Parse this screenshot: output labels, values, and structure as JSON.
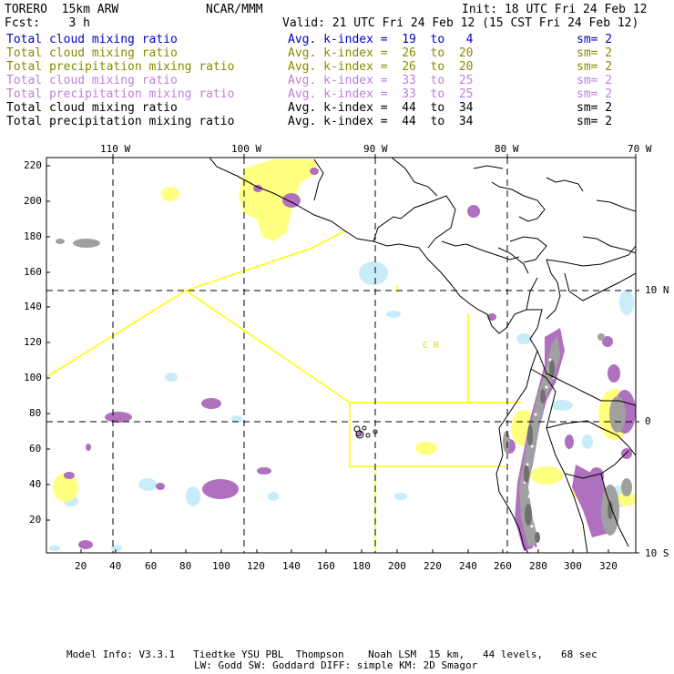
{
  "header": {
    "model": "TORERO  15km ARW",
    "org": "NCAR/MMM",
    "init": "Init: 18 UTC Fri 24 Feb 12",
    "fcst": "Fcst:    3 h",
    "valid": "Valid: 21 UTC Fri 24 Feb 12 (15 CST Fri 24 Feb 12)"
  },
  "legend": [
    {
      "label": "Total cloud mixing ratio",
      "index": "Avg. k-index =  19  to   4",
      "sm": "sm= 2",
      "color": "#0000cc"
    },
    {
      "label": "Total cloud mixing ratio",
      "index": "Avg. k-index =  26  to  20",
      "sm": "sm= 2",
      "color": "#8a8a00"
    },
    {
      "label": "Total precipitation mixing ratio",
      "index": "Avg. k-index =  26  to  20",
      "sm": "sm= 2",
      "color": "#8a8a00"
    },
    {
      "label": "Total cloud mixing ratio",
      "index": "Avg. k-index =  33  to  25",
      "sm": "sm= 2",
      "color": "#c080d8"
    },
    {
      "label": "Total precipitation mixing ratio",
      "index": "Avg. k-index =  33  to  25",
      "sm": "sm= 2",
      "color": "#c080d8"
    },
    {
      "label": "Total cloud mixing ratio",
      "index": "Avg. k-index =  44  to  34",
      "sm": "sm= 2",
      "color": "#000000"
    },
    {
      "label": "Total precipitation mixing ratio",
      "index": "Avg. k-index =  44  to  34",
      "sm": "sm= 2",
      "color": "#000000"
    }
  ],
  "map": {
    "lon_labels": [
      "110 W",
      "100 W",
      "90 W",
      "80 W",
      "70 W"
    ],
    "lat_labels": [
      "10 N",
      "0",
      "10 S"
    ],
    "y_ticks": [
      "220",
      "200",
      "180",
      "160",
      "140",
      "120",
      "100",
      "80",
      "60",
      "40",
      "20"
    ],
    "x_ticks": [
      "20",
      "40",
      "60",
      "80",
      "100",
      "120",
      "140",
      "160",
      "180",
      "200",
      "220",
      "240",
      "260",
      "280",
      "300",
      "320"
    ],
    "region_label": "C R",
    "colors": {
      "light_blue": "#c8ecf8",
      "yellow": "#ffff80",
      "purple": "#b070c0",
      "gray": "#a0a0a0",
      "dark_gray": "#707070",
      "domain_line": "#ffff00"
    }
  },
  "footer": {
    "line1": "Model Info: V3.3.1   Tiedtke YSU PBL  Thompson    Noah LSM  15 km,   44 levels,   68 sec",
    "line2": "LW: Godd SW: Goddard DIFF: simple KM: 2D Smagor"
  }
}
